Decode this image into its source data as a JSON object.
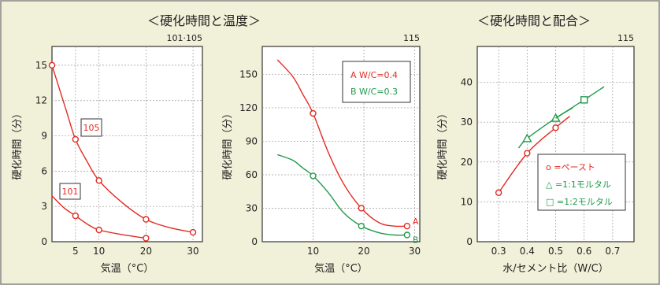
{
  "headers": {
    "left": "＜硬化時間と温度＞",
    "right": "＜硬化時間と配合＞"
  },
  "chart_data": [
    {
      "type": "line",
      "ref": "101·105",
      "xlabel": "気温（°C）",
      "ylabel": "硬化時間（分）",
      "xlim": [
        0,
        32
      ],
      "ylim": [
        0,
        16.6
      ],
      "xticks": [
        5,
        10,
        20,
        30
      ],
      "yticks": [
        0,
        3,
        6,
        9,
        12,
        15
      ],
      "series": [
        {
          "name": "105",
          "color": "#e32a22",
          "points": [
            [
              0,
              15
            ],
            [
              5,
              8.7
            ],
            [
              10,
              5.2
            ],
            [
              20,
              1.9
            ],
            [
              30,
              0.8
            ]
          ],
          "curve": [
            [
              0,
              15
            ],
            [
              3,
              11.2
            ],
            [
              5,
              8.7
            ],
            [
              7.5,
              6.8
            ],
            [
              10,
              5.2
            ],
            [
              15,
              3.3
            ],
            [
              20,
              1.9
            ],
            [
              25,
              1.2
            ],
            [
              30,
              0.8
            ]
          ]
        },
        {
          "name": "101",
          "color": "#e32a22",
          "points": [
            [
              5,
              2.2
            ],
            [
              10,
              1.0
            ],
            [
              20,
              0.3
            ]
          ],
          "curve": [
            [
              0,
              3.9
            ],
            [
              2.5,
              2.9
            ],
            [
              5,
              2.2
            ],
            [
              7.5,
              1.5
            ],
            [
              10,
              1.0
            ],
            [
              15,
              0.6
            ],
            [
              20,
              0.3
            ]
          ]
        }
      ]
    },
    {
      "type": "line",
      "ref": "115",
      "xlabel": "気温（°C）",
      "ylabel": "硬化時間（分）",
      "xlim": [
        0,
        31
      ],
      "ylim": [
        0,
        175
      ],
      "xticks": [
        10,
        20,
        30
      ],
      "yticks": [
        0,
        30,
        60,
        90,
        120,
        150
      ],
      "legend": [
        "A W/C=0.4",
        "B W/C=0.3"
      ],
      "series": [
        {
          "name": "A",
          "color": "#e32a22",
          "points": [
            [
              10,
              115
            ],
            [
              19.5,
              30
            ],
            [
              28.5,
              14
            ]
          ],
          "curve": [
            [
              3,
              163
            ],
            [
              6,
              148
            ],
            [
              8,
              132
            ],
            [
              10,
              115
            ],
            [
              13,
              80
            ],
            [
              16,
              52
            ],
            [
              19.5,
              30
            ],
            [
              23,
              17
            ],
            [
              26,
              14
            ],
            [
              28.5,
              14
            ]
          ]
        },
        {
          "name": "B",
          "color": "#1f9a4a",
          "points": [
            [
              10,
              59
            ],
            [
              19.5,
              14
            ],
            [
              28.5,
              6
            ]
          ],
          "curve": [
            [
              3,
              78
            ],
            [
              6,
              73
            ],
            [
              8,
              66
            ],
            [
              10,
              59
            ],
            [
              13,
              44
            ],
            [
              16,
              26
            ],
            [
              19.5,
              14
            ],
            [
              23,
              8
            ],
            [
              26,
              6
            ],
            [
              28.5,
              6
            ]
          ]
        }
      ]
    },
    {
      "type": "line",
      "ref": "115",
      "xlabel": "水/セメント比（W/C）",
      "ylabel": "硬化時間（分）",
      "xlim": [
        0.225,
        0.775
      ],
      "ylim": [
        0,
        49
      ],
      "xticks": [
        0.3,
        0.4,
        0.5,
        0.6,
        0.7
      ],
      "yticks": [
        0,
        10,
        20,
        30,
        40
      ],
      "legend": [
        "o =ペースト",
        "△ =1:1モルタル",
        "□ =1:2モルタル"
      ],
      "series": [
        {
          "name": "ペースト",
          "marker": "circle",
          "color": "#e32a22",
          "points": [
            [
              0.3,
              12.3
            ],
            [
              0.4,
              22.2
            ],
            [
              0.5,
              28.6
            ]
          ],
          "curve": [
            [
              0.3,
              12.3
            ],
            [
              0.4,
              22.2
            ],
            [
              0.5,
              28.6
            ],
            [
              0.55,
              31.5
            ]
          ]
        },
        {
          "name": "1:1モルタル",
          "marker": "triangle",
          "color": "#1f9a4a",
          "points": [
            [
              0.4,
              25.9
            ],
            [
              0.5,
              31.0
            ]
          ],
          "curve": [
            [
              0.37,
              23.5
            ],
            [
              0.4,
              25.9
            ],
            [
              0.5,
              31.0
            ],
            [
              0.56,
              33.6
            ]
          ]
        },
        {
          "name": "1:2モルタル",
          "marker": "square",
          "color": "#1f9a4a",
          "points": [
            [
              0.6,
              35.6
            ]
          ],
          "curve": [
            [
              0.5,
              31.0
            ],
            [
              0.6,
              35.6
            ],
            [
              0.67,
              38.9
            ]
          ]
        }
      ]
    }
  ]
}
